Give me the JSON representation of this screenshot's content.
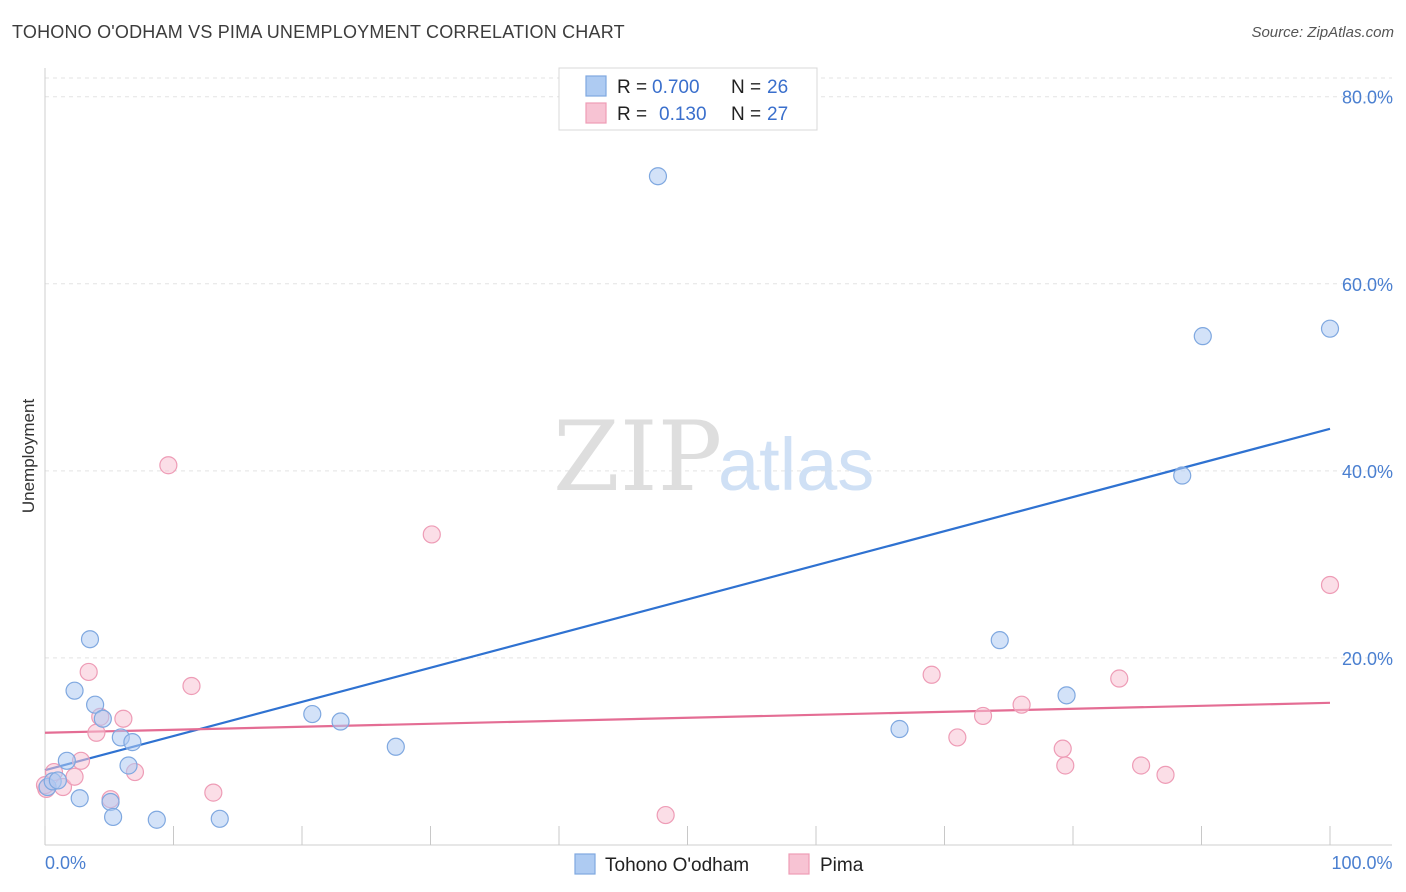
{
  "header": {
    "title": "TOHONO O'ODHAM VS PIMA UNEMPLOYMENT CORRELATION CHART",
    "source": "Source: ZipAtlas.com"
  },
  "colors": {
    "blue_fill": "#aecbf2",
    "blue_stroke": "#7fa8e0",
    "blue_line": "#2f72d1",
    "pink_fill": "#f7c3d3",
    "pink_stroke": "#ee9cb6",
    "pink_line": "#e46d94",
    "grid": "#e3e3e3",
    "axis_text": "#4a7fd0"
  },
  "watermark": {
    "zip": "ZIP",
    "atlas": "atlas"
  },
  "legend": {
    "rows": [
      {
        "r_label": "R = ",
        "r_value": "0.700",
        "n_label": "N = ",
        "n_value": "26"
      },
      {
        "r_label": "R = ",
        "r_value": "0.130",
        "n_label": "N = ",
        "n_value": "27"
      }
    ]
  },
  "chart_data": {
    "type": "scatter",
    "title": "TOHONO O'ODHAM VS PIMA UNEMPLOYMENT CORRELATION CHART",
    "xlabel": "",
    "ylabel": "Unemployment",
    "xlim": [
      0,
      100
    ],
    "ylim": [
      0,
      82
    ],
    "x_tick_labels": [
      {
        "value": 0,
        "label": "0.0%"
      },
      {
        "value": 100,
        "label": "100.0%"
      }
    ],
    "y_tick_labels": [
      {
        "value": 20,
        "label": "20.0%"
      },
      {
        "value": 40,
        "label": "40.0%"
      },
      {
        "value": 60,
        "label": "60.0%"
      },
      {
        "value": 80,
        "label": "80.0%"
      }
    ],
    "x_minor_ticks": [
      0,
      10,
      20,
      30,
      40,
      50,
      60,
      70,
      80,
      90,
      100
    ],
    "series": [
      {
        "name": "Tohono O'odham",
        "r": 0.7,
        "n": 26,
        "trend": {
          "x0": 0,
          "y0": 8.0,
          "x1": 100,
          "y1": 44.5
        },
        "points": [
          {
            "x": 0.2,
            "y": 6.2
          },
          {
            "x": 0.6,
            "y": 6.8
          },
          {
            "x": 1.0,
            "y": 6.9
          },
          {
            "x": 1.7,
            "y": 9.0
          },
          {
            "x": 2.3,
            "y": 16.5
          },
          {
            "x": 2.7,
            "y": 5.0
          },
          {
            "x": 3.5,
            "y": 22.0
          },
          {
            "x": 3.9,
            "y": 15.0
          },
          {
            "x": 4.5,
            "y": 13.5
          },
          {
            "x": 5.1,
            "y": 4.6
          },
          {
            "x": 5.3,
            "y": 3.0
          },
          {
            "x": 5.9,
            "y": 11.5
          },
          {
            "x": 6.5,
            "y": 8.5
          },
          {
            "x": 6.8,
            "y": 11.0
          },
          {
            "x": 8.7,
            "y": 2.7
          },
          {
            "x": 13.6,
            "y": 2.8
          },
          {
            "x": 20.8,
            "y": 14.0
          },
          {
            "x": 23.0,
            "y": 13.2
          },
          {
            "x": 27.3,
            "y": 10.5
          },
          {
            "x": 47.7,
            "y": 71.5
          },
          {
            "x": 66.5,
            "y": 12.4
          },
          {
            "x": 74.3,
            "y": 21.9
          },
          {
            "x": 79.5,
            "y": 16.0
          },
          {
            "x": 88.5,
            "y": 39.5
          },
          {
            "x": 90.1,
            "y": 54.4
          },
          {
            "x": 100.0,
            "y": 55.2
          }
        ]
      },
      {
        "name": "Pima",
        "r": 0.13,
        "n": 27,
        "trend": {
          "x0": 0,
          "y0": 12.0,
          "x1": 100,
          "y1": 15.2
        },
        "points": [
          {
            "x": 0.1,
            "y": 6.0
          },
          {
            "x": 0.7,
            "y": 7.8
          },
          {
            "x": 1.4,
            "y": 6.2
          },
          {
            "x": 2.3,
            "y": 7.3
          },
          {
            "x": 2.8,
            "y": 9.0
          },
          {
            "x": 3.4,
            "y": 18.5
          },
          {
            "x": 4.0,
            "y": 12.0
          },
          {
            "x": 4.3,
            "y": 13.7
          },
          {
            "x": 5.1,
            "y": 4.9
          },
          {
            "x": 6.1,
            "y": 13.5
          },
          {
            "x": 7.0,
            "y": 7.8
          },
          {
            "x": 9.6,
            "y": 40.6
          },
          {
            "x": 11.4,
            "y": 17.0
          },
          {
            "x": 13.1,
            "y": 5.6
          },
          {
            "x": 30.1,
            "y": 33.2
          },
          {
            "x": 48.3,
            "y": 3.2
          },
          {
            "x": 69.0,
            "y": 18.2
          },
          {
            "x": 71.0,
            "y": 11.5
          },
          {
            "x": 73.0,
            "y": 13.8
          },
          {
            "x": 76.0,
            "y": 15.0
          },
          {
            "x": 79.2,
            "y": 10.3
          },
          {
            "x": 79.4,
            "y": 8.5
          },
          {
            "x": 83.6,
            "y": 17.8
          },
          {
            "x": 85.3,
            "y": 8.5
          },
          {
            "x": 87.2,
            "y": 7.5
          },
          {
            "x": 100.0,
            "y": 27.8
          },
          {
            "x": 0.0,
            "y": 6.4
          }
        ]
      }
    ]
  }
}
